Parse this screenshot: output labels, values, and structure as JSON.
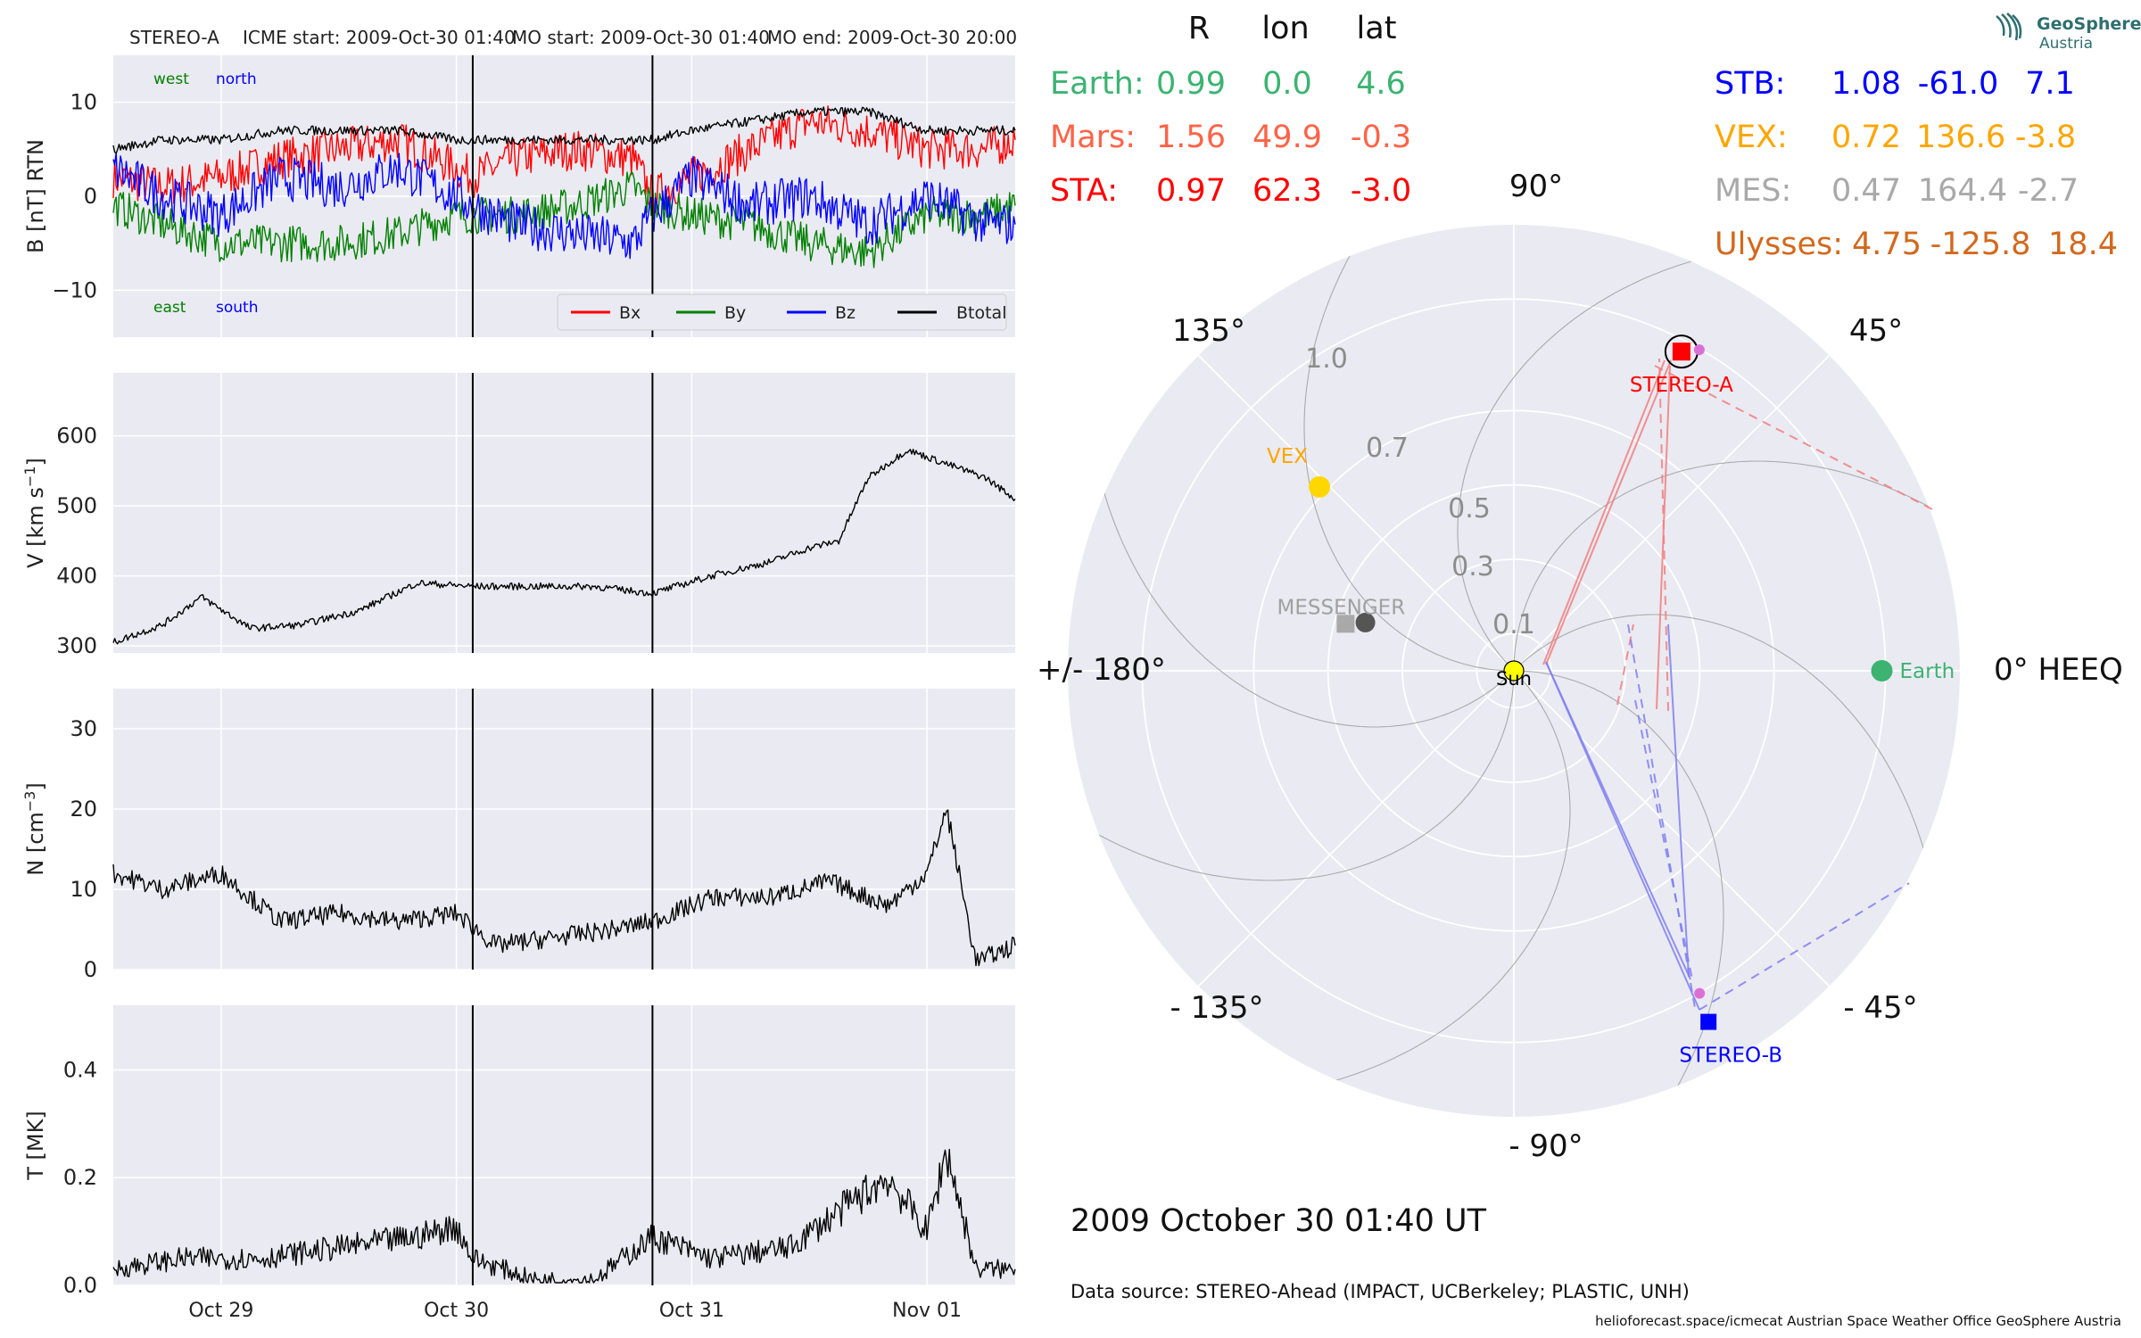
{
  "header": {
    "spacecraft": "STEREO-A",
    "icme_start": "ICME start: 2009-Oct-30 01:40",
    "mo_start": "MO start: 2009-Oct-30 01:40",
    "mo_end": "MO end: 2009-Oct-30 20:00"
  },
  "colors": {
    "panel_bg": "#eaeaf2",
    "grid": "#ffffff",
    "bx": "#ff0000",
    "by": "#008000",
    "bz": "#0000ff",
    "btotal": "#000000",
    "earth": "#3cb371",
    "mars": "#ff6347",
    "sta": "#ff0000",
    "stb": "#0000ff",
    "vex": "#ffa500",
    "mes": "#a9a9a9",
    "ulysses": "#d2691e"
  },
  "chart_data": [
    {
      "type": "line",
      "panel": "magnetic-field",
      "ylabel": "B [nT] RTN",
      "ylim": [
        -15,
        15
      ],
      "yticks": [
        -10,
        0,
        10
      ],
      "ytick_labels": [
        "−10",
        "0",
        "10"
      ],
      "annotations": {
        "top_left": "west",
        "top_right": "north",
        "bottom_left": "east",
        "bottom_right": "south"
      },
      "legend": {
        "placement": "lower-right",
        "entries": [
          "Bx",
          "By",
          "Bz",
          "Btotal"
        ]
      },
      "x_range_days": [
        "2009-10-28 13:00",
        "2009-11-01 09:00"
      ],
      "series": [
        {
          "name": "Bx",
          "x": [
            "2009-10-28 13:00",
            "2009-10-28 18:00",
            "2009-10-29 00:00",
            "2009-10-29 06:00",
            "2009-10-29 12:00",
            "2009-10-29 18:00",
            "2009-10-30 00:00",
            "2009-10-30 01:40",
            "2009-10-30 06:00",
            "2009-10-30 12:00",
            "2009-10-30 18:00",
            "2009-10-30 20:00",
            "2009-10-31 00:00",
            "2009-10-31 06:00",
            "2009-10-31 12:00",
            "2009-10-31 18:00",
            "2009-11-01 00:00",
            "2009-11-01 06:00",
            "2009-11-01 09:00"
          ],
          "y": [
            2,
            1,
            2,
            4,
            5,
            6,
            3,
            2,
            4,
            5,
            4,
            0,
            2,
            5,
            8,
            7,
            5,
            5,
            6
          ]
        },
        {
          "name": "By",
          "x": [
            "2009-10-28 13:00",
            "2009-10-28 18:00",
            "2009-10-29 00:00",
            "2009-10-29 06:00",
            "2009-10-29 12:00",
            "2009-10-29 18:00",
            "2009-10-30 00:00",
            "2009-10-30 01:40",
            "2009-10-30 06:00",
            "2009-10-30 12:00",
            "2009-10-30 18:00",
            "2009-10-30 20:00",
            "2009-10-31 00:00",
            "2009-10-31 06:00",
            "2009-10-31 12:00",
            "2009-10-31 18:00",
            "2009-11-01 00:00",
            "2009-11-01 06:00",
            "2009-11-01 09:00"
          ],
          "y": [
            -1,
            -3,
            -5,
            -5,
            -5,
            -4,
            -2,
            -2,
            -2,
            -1,
            1,
            -1,
            -2,
            -3,
            -5,
            -6,
            -2,
            -2,
            -1
          ]
        },
        {
          "name": "Bz",
          "x": [
            "2009-10-28 13:00",
            "2009-10-28 18:00",
            "2009-10-29 00:00",
            "2009-10-29 06:00",
            "2009-10-29 12:00",
            "2009-10-29 18:00",
            "2009-10-30 00:00",
            "2009-10-30 01:40",
            "2009-10-30 06:00",
            "2009-10-30 12:00",
            "2009-10-30 18:00",
            "2009-10-30 20:00",
            "2009-10-31 00:00",
            "2009-10-31 06:00",
            "2009-10-31 12:00",
            "2009-10-31 18:00",
            "2009-11-01 00:00",
            "2009-11-01 06:00",
            "2009-11-01 09:00"
          ],
          "y": [
            3,
            0,
            -2,
            2,
            1,
            3,
            0,
            -1,
            -3,
            -4,
            -5,
            -2,
            2,
            -1,
            0,
            -3,
            0,
            -3,
            -3
          ]
        },
        {
          "name": "Btotal",
          "x": [
            "2009-10-28 13:00",
            "2009-10-28 18:00",
            "2009-10-29 00:00",
            "2009-10-29 06:00",
            "2009-10-29 12:00",
            "2009-10-29 18:00",
            "2009-10-30 00:00",
            "2009-10-30 01:40",
            "2009-10-30 06:00",
            "2009-10-30 12:00",
            "2009-10-30 18:00",
            "2009-10-30 20:00",
            "2009-10-31 00:00",
            "2009-10-31 06:00",
            "2009-10-31 12:00",
            "2009-10-31 18:00",
            "2009-11-01 00:00",
            "2009-11-01 06:00",
            "2009-11-01 09:00"
          ],
          "y": [
            5,
            6,
            6,
            7,
            7,
            7,
            6,
            6,
            6,
            6,
            6,
            6,
            7,
            8,
            9,
            9,
            7,
            7,
            7
          ]
        }
      ]
    },
    {
      "type": "line",
      "panel": "velocity",
      "ylabel": "V [km s",
      "ylabel_sup": "−1",
      "ylabel_end": "]",
      "ylim": [
        290,
        690
      ],
      "yticks": [
        300,
        400,
        500,
        600
      ],
      "ytick_labels": [
        "300",
        "400",
        "500",
        "600"
      ],
      "series": [
        {
          "name": "V",
          "x": [
            "2009-10-28 13:00",
            "2009-10-28 18:00",
            "2009-10-28 22:00",
            "2009-10-29 03:00",
            "2009-10-29 08:00",
            "2009-10-29 14:00",
            "2009-10-29 20:00",
            "2009-10-30 01:40",
            "2009-10-30 08:00",
            "2009-10-30 14:00",
            "2009-10-30 20:00",
            "2009-10-31 02:00",
            "2009-10-31 08:00",
            "2009-10-31 12:00",
            "2009-10-31 15:00",
            "2009-10-31 18:00",
            "2009-10-31 22:00",
            "2009-11-01 02:00",
            "2009-11-01 06:00",
            "2009-11-01 09:00"
          ],
          "y": [
            305,
            330,
            370,
            325,
            330,
            350,
            390,
            385,
            385,
            385,
            375,
            400,
            420,
            440,
            450,
            540,
            580,
            560,
            540,
            510
          ]
        }
      ]
    },
    {
      "type": "line",
      "panel": "density",
      "ylabel": "N [cm",
      "ylabel_sup": "−3",
      "ylabel_end": "]",
      "ylim": [
        0,
        35
      ],
      "yticks": [
        0,
        10,
        20,
        30
      ],
      "ytick_labels": [
        "0",
        "10",
        "20",
        "30"
      ],
      "series": [
        {
          "name": "N",
          "x": [
            "2009-10-28 13:00",
            "2009-10-28 18:00",
            "2009-10-29 00:00",
            "2009-10-29 06:00",
            "2009-10-29 12:00",
            "2009-10-29 18:00",
            "2009-10-30 00:00",
            "2009-10-30 04:00",
            "2009-10-30 10:00",
            "2009-10-30 16:00",
            "2009-10-30 20:00",
            "2009-10-31 02:00",
            "2009-10-31 08:00",
            "2009-10-31 14:00",
            "2009-10-31 20:00",
            "2009-11-01 00:00",
            "2009-11-01 02:00",
            "2009-11-01 05:00",
            "2009-11-01 09:00"
          ],
          "y": [
            12,
            10,
            12,
            6,
            7,
            6,
            7,
            3,
            4,
            5,
            6,
            9,
            9,
            11,
            8,
            12,
            20,
            1,
            3
          ]
        }
      ]
    },
    {
      "type": "line",
      "panel": "temperature",
      "ylabel": "T [MK]",
      "ylim": [
        0,
        0.52
      ],
      "yticks": [
        0.0,
        0.2,
        0.4
      ],
      "ytick_labels": [
        "0.0",
        "0.2",
        "0.4"
      ],
      "xtick_labels": [
        "Oct 29",
        "Oct 30",
        "Oct 31",
        "Nov 01"
      ],
      "series": [
        {
          "name": "T",
          "x": [
            "2009-10-28 13:00",
            "2009-10-28 20:00",
            "2009-10-29 04:00",
            "2009-10-29 12:00",
            "2009-10-29 20:00",
            "2009-10-30 00:00",
            "2009-10-30 01:40",
            "2009-10-30 08:00",
            "2009-10-30 14:00",
            "2009-10-30 20:00",
            "2009-10-31 02:00",
            "2009-10-31 10:00",
            "2009-10-31 16:00",
            "2009-10-31 20:00",
            "2009-11-01 00:00",
            "2009-11-01 02:00",
            "2009-11-01 05:00",
            "2009-11-01 09:00"
          ],
          "y": [
            0.03,
            0.05,
            0.05,
            0.07,
            0.09,
            0.11,
            0.05,
            0.01,
            0.01,
            0.09,
            0.05,
            0.07,
            0.15,
            0.2,
            0.1,
            0.25,
            0.03,
            0.03
          ]
        }
      ]
    },
    {
      "type": "scatter",
      "panel": "polar-orbit-plot",
      "radial_ticks": [
        "0.1",
        "0.3",
        "0.5",
        "0.7",
        "1.0"
      ],
      "angle_labels": [
        "90°",
        "45°",
        "0° HEEQ",
        "- 45°",
        "- 90°",
        "- 135°",
        "+/- 180°",
        "135°"
      ],
      "bodies": [
        {
          "name": "Sun",
          "r": 0.0,
          "lon": 0.0
        },
        {
          "name": "Earth",
          "r": 0.99,
          "lon": 0.0
        },
        {
          "name": "STEREO-A",
          "r": 0.97,
          "lon": 62.3
        },
        {
          "name": "STEREO-B",
          "r": 1.08,
          "lon": -61.0
        },
        {
          "name": "VEX",
          "r": 0.72,
          "lon": 136.6
        },
        {
          "name": "MESSENGER",
          "r": 0.47,
          "lon": 164.4
        },
        {
          "name": "",
          "r": 0.42,
          "lon": 162.0
        }
      ]
    }
  ],
  "position_table": {
    "headers": [
      "R",
      "lon",
      "lat"
    ],
    "left_rows": [
      {
        "label": "Earth:",
        "r": "0.99",
        "lon": "0.0",
        "lat": "4.6"
      },
      {
        "label": "Mars:",
        "r": "1.56",
        "lon": "49.9",
        "lat": "-0.3"
      },
      {
        "label": "STA:",
        "r": "0.97",
        "lon": "62.3",
        "lat": "-3.0"
      }
    ],
    "right_rows": [
      {
        "label": "STB:",
        "r": "1.08",
        "lon": "-61.0",
        "lat": "7.1"
      },
      {
        "label": "VEX:",
        "r": "0.72",
        "lon": "136.6",
        "lat": "-3.8"
      },
      {
        "label": "MES:",
        "r": "0.47",
        "lon": "164.4",
        "lat": "-2.7"
      },
      {
        "label": "Ulysses:",
        "r": "4.75",
        "lon": "-125.8",
        "lat": "18.4"
      }
    ]
  },
  "footer": {
    "datetime": "2009 October 30  01:40 UT",
    "source": "Data source: STEREO-Ahead (IMPACT, UCBerkeley; PLASTIC, UNH)",
    "credits": "helioforecast.space/icmecat   Austrian Space Weather Office   GeoSphere Austria"
  },
  "logo": {
    "line1": "GeoSphere",
    "line2": "Austria"
  }
}
